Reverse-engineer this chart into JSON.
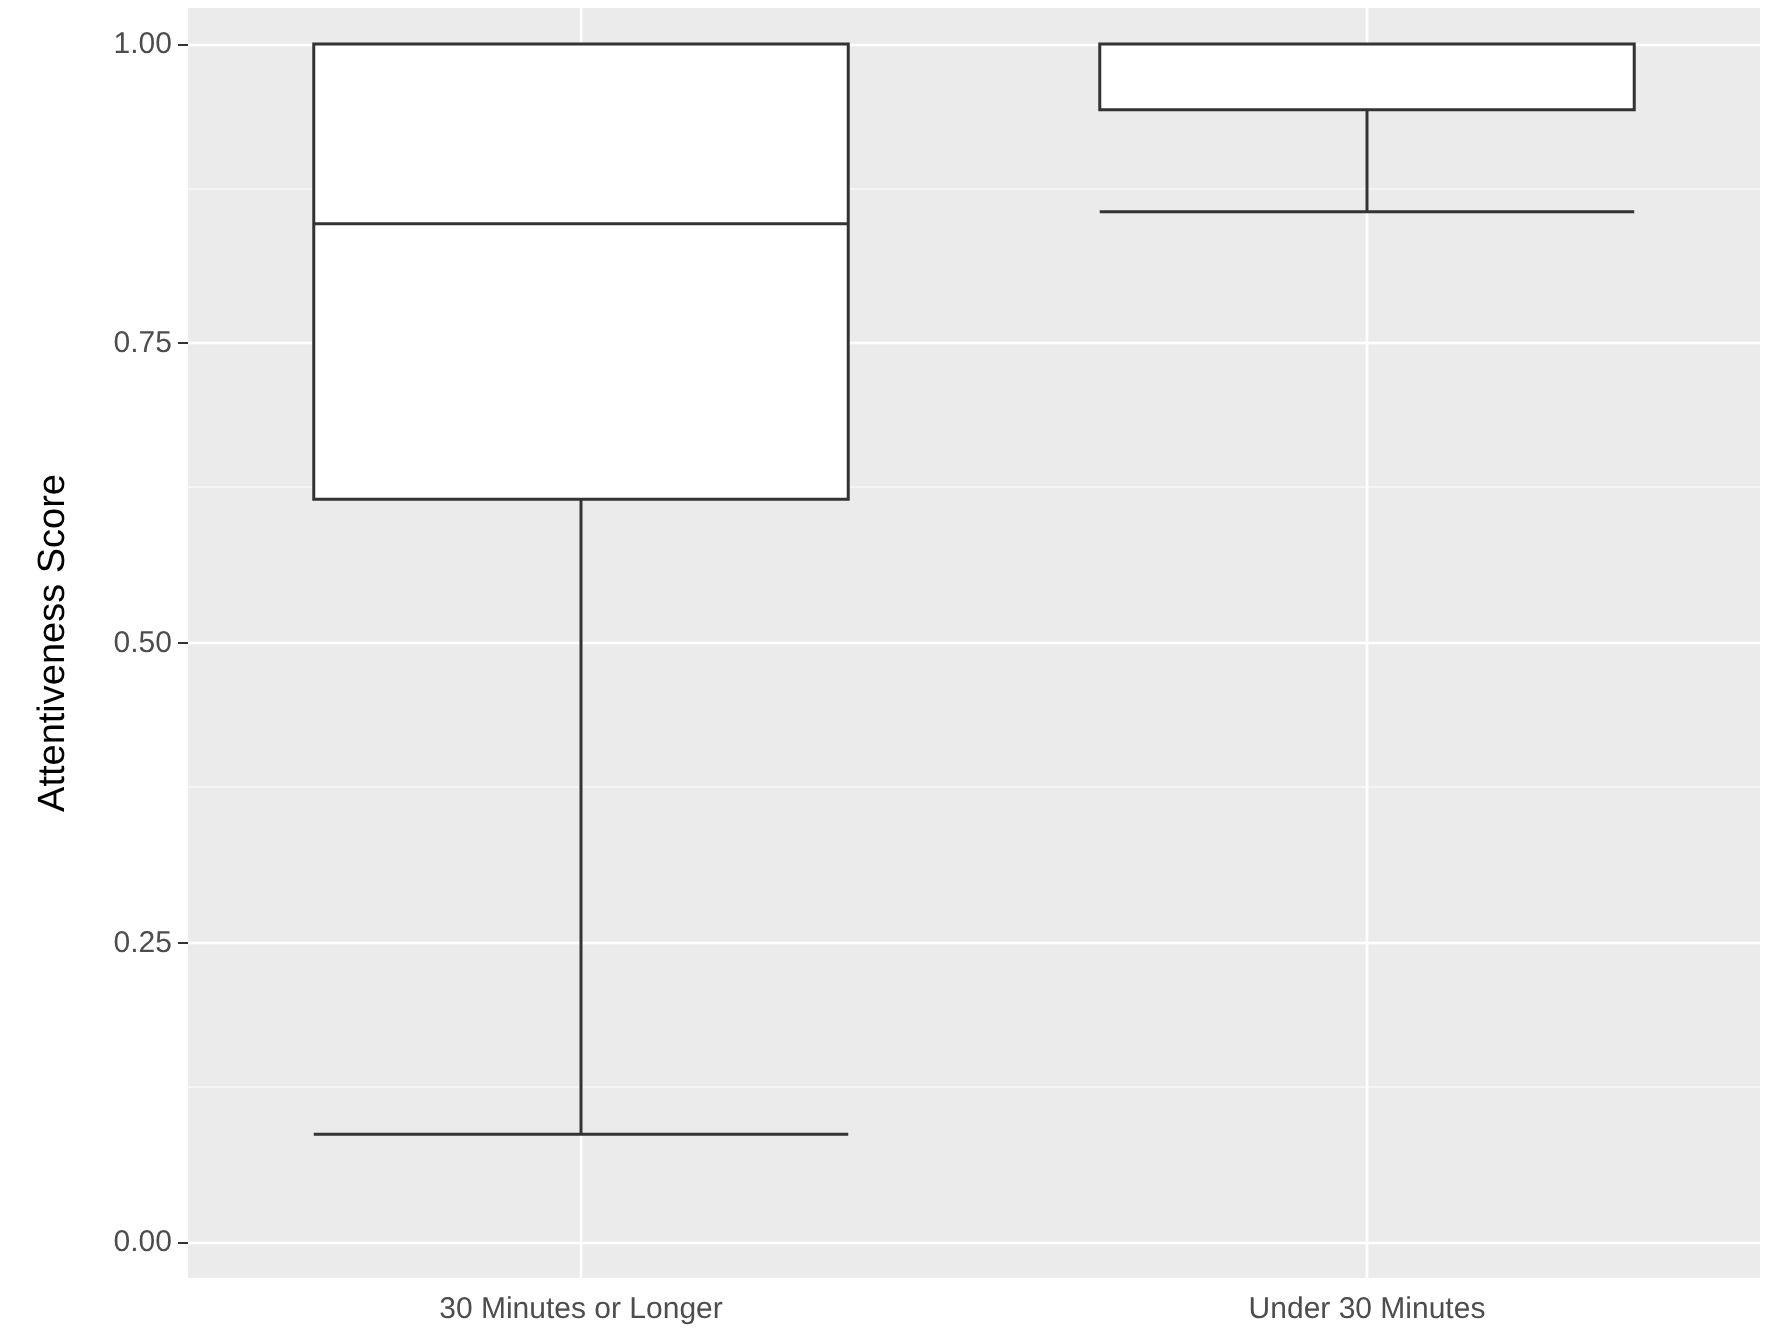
{
  "chart_data": {
    "type": "box",
    "ylabel": "Attentiveness Score",
    "categories": [
      "30 Minutes or Longer",
      "Under 30 Minutes"
    ],
    "boxes": [
      {
        "low": 0.09,
        "q1": 0.62,
        "median": 0.85,
        "q3": 1.0,
        "high": 1.0
      },
      {
        "low": 0.86,
        "q1": 0.945,
        "median": 1.0,
        "q3": 1.0,
        "high": 1.0
      }
    ],
    "color": "#333333",
    "ylim": [
      -0.03,
      1.03
    ],
    "yticks": [
      {
        "value": 0,
        "label": "0.00"
      },
      {
        "value": 0.25,
        "label": "0.25"
      },
      {
        "value": 0.5,
        "label": "0.50"
      },
      {
        "value": 0.75,
        "label": "0.75"
      },
      {
        "value": 1,
        "label": "1.00"
      }
    ],
    "grid": true
  }
}
